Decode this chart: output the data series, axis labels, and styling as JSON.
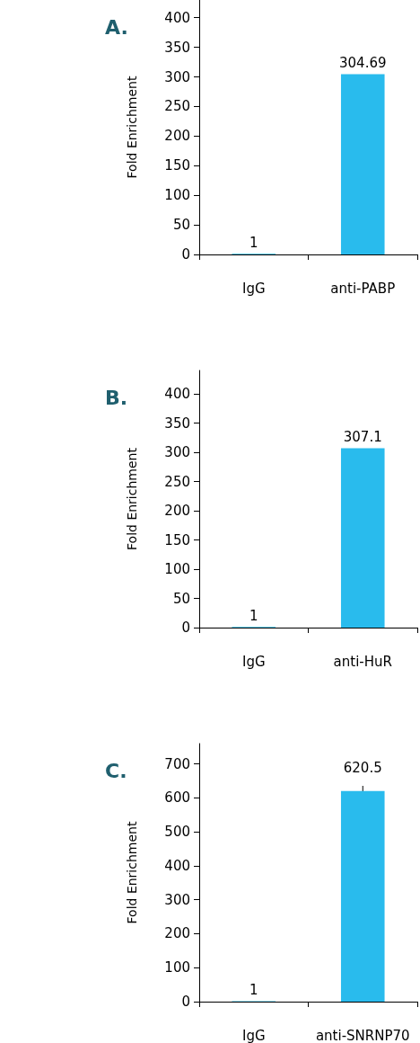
{
  "chart_data": [
    {
      "type": "bar",
      "title": "A.",
      "ylabel": "Fold Enrichment",
      "categories": [
        "IgG",
        "anti-PABP"
      ],
      "values": [
        1,
        304.69
      ],
      "color": "#29bbed",
      "ylim": [
        0,
        430
      ],
      "yticks": [
        0,
        50,
        100,
        150,
        200,
        250,
        300,
        350,
        400
      ],
      "data_labels": true,
      "grid": false
    },
    {
      "type": "bar",
      "title": "B.",
      "ylabel": "Fold Enrichment",
      "categories": [
        "IgG",
        "anti-HuR"
      ],
      "values": [
        1,
        307.1
      ],
      "color": "#29bbed",
      "ylim": [
        0,
        440
      ],
      "yticks": [
        0,
        50,
        100,
        150,
        200,
        250,
        300,
        350,
        400
      ],
      "data_labels": true,
      "grid": false
    },
    {
      "type": "bar",
      "title": "C.",
      "ylabel": "Fold Enrichment",
      "categories": [
        "IgG",
        "anti-SNRNP70"
      ],
      "values": [
        1,
        620.5
      ],
      "errors": [
        null,
        15
      ],
      "color": "#29bbed",
      "ylim": [
        0,
        760
      ],
      "yticks": [
        0,
        100,
        200,
        300,
        400,
        500,
        600,
        700
      ],
      "data_labels": true,
      "grid": false
    }
  ]
}
